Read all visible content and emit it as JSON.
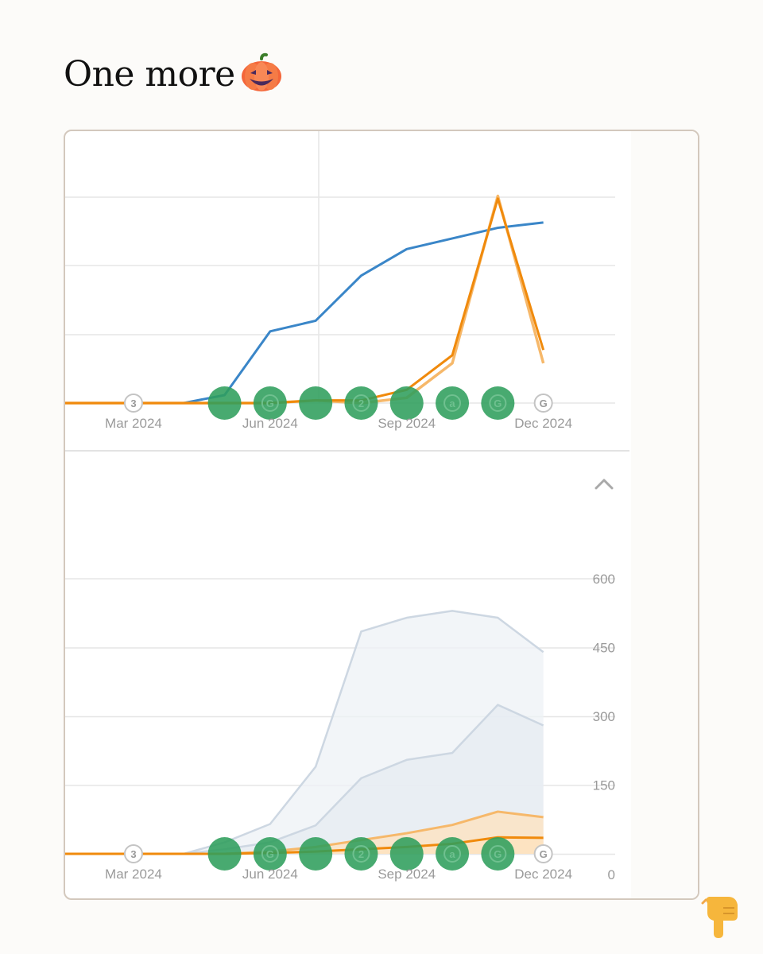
{
  "title": {
    "text": "One more",
    "emoji": "pumpkin-icon"
  },
  "colors": {
    "blue": "#3a86c8",
    "orange_dark": "#f08a0c",
    "orange_light": "#f6b86a",
    "gray_line": "#cdd7e2",
    "gray_fill_outer": "#eef1f5",
    "gray_fill_inner": "#e6ebf1",
    "orange_fill": "#fde1bd",
    "marker_green": "#2f9e5c",
    "grid": "#e6e6e6",
    "axis_text": "#9a9a9a"
  },
  "collapse_icon": "chevron-up-icon",
  "chart_data": [
    {
      "type": "line",
      "title": "",
      "x_index": [
        0,
        1,
        2,
        3,
        4,
        5,
        6,
        7,
        8,
        9,
        10,
        11
      ],
      "x_tick_labels": [
        "Mar 2024",
        "Jun 2024",
        "Sep 2024",
        "Dec 2024"
      ],
      "x_tick_positions": [
        1.5,
        4.5,
        7.5,
        10.5
      ],
      "ylim": [
        0,
        100
      ],
      "y_tick_labels": [],
      "series": [
        {
          "name": "blue",
          "color": "#3a86c8",
          "values": [
            0,
            0,
            0,
            0,
            3,
            27,
            31,
            48,
            58,
            62,
            66,
            68
          ],
          "x": [
            0,
            1,
            2,
            2.6,
            3.5,
            4.5,
            5.5,
            6.5,
            7.5,
            8.5,
            9.5,
            10.5
          ]
        },
        {
          "name": "orange-light",
          "color": "#f6b86a",
          "values": [
            0,
            0,
            0,
            0,
            0,
            0,
            1,
            0,
            2,
            15,
            78,
            15
          ],
          "x": [
            0,
            1,
            2,
            3,
            3.5,
            4.5,
            5.5,
            6.5,
            7.5,
            8.5,
            9.5,
            10.5
          ]
        },
        {
          "name": "orange-dark",
          "color": "#f08a0c",
          "values": [
            0,
            0,
            0,
            0,
            0,
            0,
            1,
            1,
            5,
            18,
            77,
            20
          ],
          "x": [
            0,
            1,
            2,
            3,
            3.5,
            4.5,
            5.5,
            6.5,
            7.5,
            8.5,
            9.5,
            10.5
          ]
        }
      ],
      "annotations": [
        {
          "x": 1.5,
          "label": "3",
          "kind": "outline"
        },
        {
          "x": 3.5,
          "label": "",
          "kind": "green"
        },
        {
          "x": 4.5,
          "label": "G",
          "kind": "green"
        },
        {
          "x": 5.5,
          "label": "",
          "kind": "green"
        },
        {
          "x": 6.5,
          "label": "2",
          "kind": "green"
        },
        {
          "x": 7.5,
          "label": "",
          "kind": "green"
        },
        {
          "x": 8.5,
          "label": "a",
          "kind": "green"
        },
        {
          "x": 9.5,
          "label": "G",
          "kind": "green"
        },
        {
          "x": 10.5,
          "label": "G",
          "kind": "outline"
        }
      ]
    },
    {
      "type": "area",
      "title": "",
      "x_tick_labels": [
        "Mar 2024",
        "Jun 2024",
        "Sep 2024",
        "Dec 2024"
      ],
      "x_tick_positions": [
        1.5,
        4.5,
        7.5,
        10.5
      ],
      "ylim": [
        0,
        600
      ],
      "y_tick_labels": [
        "600",
        "450",
        "300",
        "150",
        "0"
      ],
      "y_tick_values": [
        600,
        450,
        300,
        150,
        0
      ],
      "series": [
        {
          "name": "gray-outer",
          "color": "#cdd7e2",
          "x": [
            0,
            1,
            2,
            2.6,
            3.5,
            4.5,
            5.5,
            6.5,
            7.5,
            8.5,
            9.5,
            10.5
          ],
          "values": [
            0,
            0,
            0,
            0,
            25,
            65,
            190,
            485,
            515,
            530,
            515,
            440
          ]
        },
        {
          "name": "gray-inner",
          "color": "#cdd7e2",
          "x": [
            0,
            1,
            2,
            2.6,
            3.5,
            4.5,
            5.5,
            6.5,
            7.5,
            8.5,
            9.5,
            10.5
          ],
          "values": [
            0,
            0,
            0,
            0,
            10,
            25,
            62,
            165,
            205,
            220,
            325,
            280
          ]
        },
        {
          "name": "orange-light",
          "color": "#f6b86a",
          "x": [
            0,
            1,
            2,
            2.6,
            3.5,
            4.5,
            5.5,
            6.5,
            7.5,
            8.5,
            9.5,
            10.5
          ],
          "values": [
            0,
            0,
            0,
            0,
            0,
            5,
            15,
            30,
            45,
            63,
            92,
            80
          ]
        },
        {
          "name": "orange-dark",
          "color": "#f08a0c",
          "x": [
            0,
            1,
            2,
            2.6,
            3.5,
            4.5,
            5.5,
            6.5,
            7.5,
            8.5,
            9.5,
            10.5
          ],
          "values": [
            0,
            0,
            0,
            0,
            0,
            2,
            5,
            10,
            15,
            22,
            36,
            35
          ]
        }
      ],
      "annotations": [
        {
          "x": 1.5,
          "label": "3",
          "kind": "outline"
        },
        {
          "x": 3.5,
          "label": "",
          "kind": "green"
        },
        {
          "x": 4.5,
          "label": "G",
          "kind": "green"
        },
        {
          "x": 5.5,
          "label": "",
          "kind": "green"
        },
        {
          "x": 6.5,
          "label": "2",
          "kind": "green"
        },
        {
          "x": 7.5,
          "label": "",
          "kind": "green"
        },
        {
          "x": 8.5,
          "label": "a",
          "kind": "green"
        },
        {
          "x": 9.5,
          "label": "G",
          "kind": "green"
        },
        {
          "x": 10.5,
          "label": "G",
          "kind": "outline"
        }
      ]
    }
  ]
}
